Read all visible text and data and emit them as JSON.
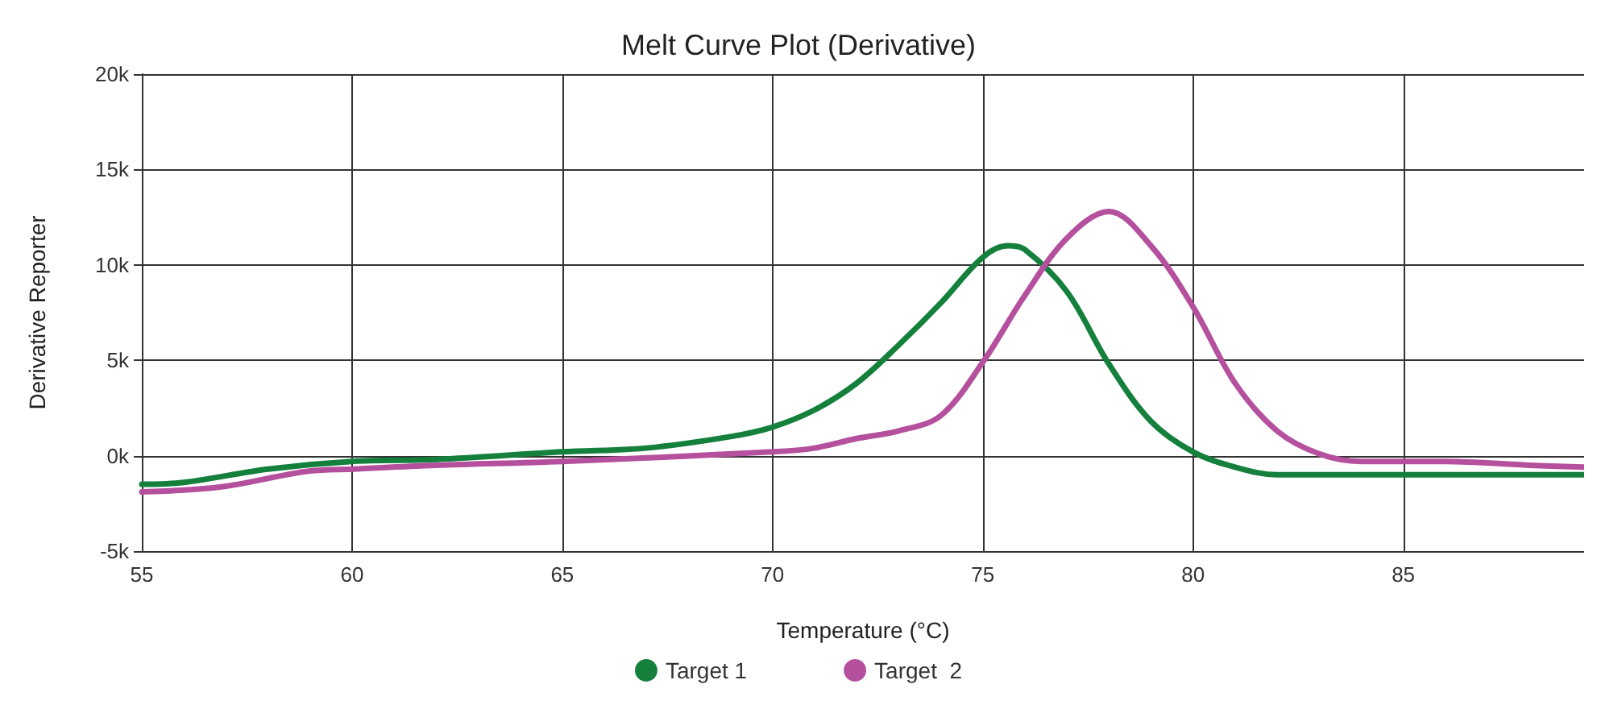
{
  "chart_data": {
    "type": "line",
    "title": "Melt Curve Plot (Derivative)",
    "xlabel": "Temperature (°C)",
    "ylabel": "Derivative Reporter",
    "xlim": [
      55,
      89.3
    ],
    "xticks": [
      55,
      60,
      65,
      70,
      75,
      80,
      85
    ],
    "ylim": [
      -5000,
      20000
    ],
    "yticks": [
      {
        "value": -5000,
        "label": "-5k"
      },
      {
        "value": 0,
        "label": "0k"
      },
      {
        "value": 5000,
        "label": "5k"
      },
      {
        "value": 10000,
        "label": "10k"
      },
      {
        "value": 15000,
        "label": "15k"
      },
      {
        "value": 20000,
        "label": "20k"
      }
    ],
    "grid": true,
    "legend": "bottom",
    "marker": "none",
    "line_style": "solid",
    "series": [
      {
        "name": "Target 1",
        "color": "#14803c",
        "x": [
          55,
          56,
          58,
          60,
          62,
          65,
          67,
          69,
          70,
          71,
          72,
          73,
          74,
          75,
          75.6,
          76,
          77,
          78,
          79,
          80,
          81,
          82,
          85,
          89.3
        ],
        "values": [
          -1500,
          -1400,
          -700,
          -300,
          -200,
          200,
          400,
          1000,
          1500,
          2400,
          3800,
          5800,
          8000,
          10400,
          11000,
          10800,
          8600,
          4800,
          1800,
          200,
          -600,
          -1000,
          -1000,
          -1000
        ]
      },
      {
        "name": "Target  2",
        "color": "#b5509e",
        "x": [
          55,
          56,
          57,
          59,
          60,
          62,
          65,
          70,
          71,
          72,
          73,
          74,
          75,
          76,
          77,
          78,
          79,
          80,
          81,
          82,
          83,
          84,
          86,
          88,
          89.3
        ],
        "values": [
          -1900,
          -1800,
          -1600,
          -800,
          -700,
          -500,
          -300,
          200,
          400,
          900,
          1300,
          2100,
          4900,
          8400,
          11400,
          12800,
          11000,
          7800,
          3800,
          1300,
          100,
          -300,
          -300,
          -500,
          -600
        ]
      }
    ]
  }
}
